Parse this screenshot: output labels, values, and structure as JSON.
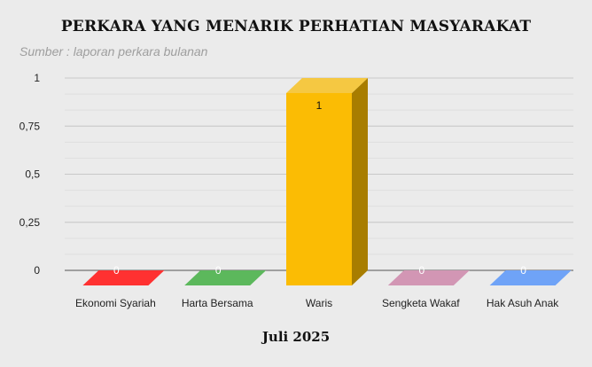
{
  "chart_data": {
    "type": "bar",
    "title": "PERKARA YANG MENARIK PERHATIAN MASYARAKAT",
    "subtitle": "Sumber : laporan perkara bulanan",
    "xlabel": "Juli 2025",
    "ylabel": "",
    "categories": [
      "Ekonomi Syariah",
      "Harta Bersama",
      "Waris",
      "Sengketa Wakaf",
      "Hak Asuh Anak"
    ],
    "values": [
      0,
      0,
      1,
      0,
      0
    ],
    "data_labels": [
      "0",
      "0",
      "1",
      "0",
      "0"
    ],
    "ylim": [
      0,
      1
    ],
    "yticks": [
      {
        "value": 0,
        "label": "0"
      },
      {
        "value": 0.25,
        "label": "0,25"
      },
      {
        "value": 0.5,
        "label": "0,5"
      },
      {
        "value": 0.75,
        "label": "0,75"
      },
      {
        "value": 1,
        "label": "1"
      }
    ],
    "colors": [
      "#ff3131",
      "#5cb85c",
      "#fbbc04",
      "#d296b4",
      "#6fa3f7"
    ],
    "side_color": "#a87d00",
    "top_color": "#f5c842",
    "grid": true,
    "legend": "none",
    "style": "3d-bar"
  }
}
